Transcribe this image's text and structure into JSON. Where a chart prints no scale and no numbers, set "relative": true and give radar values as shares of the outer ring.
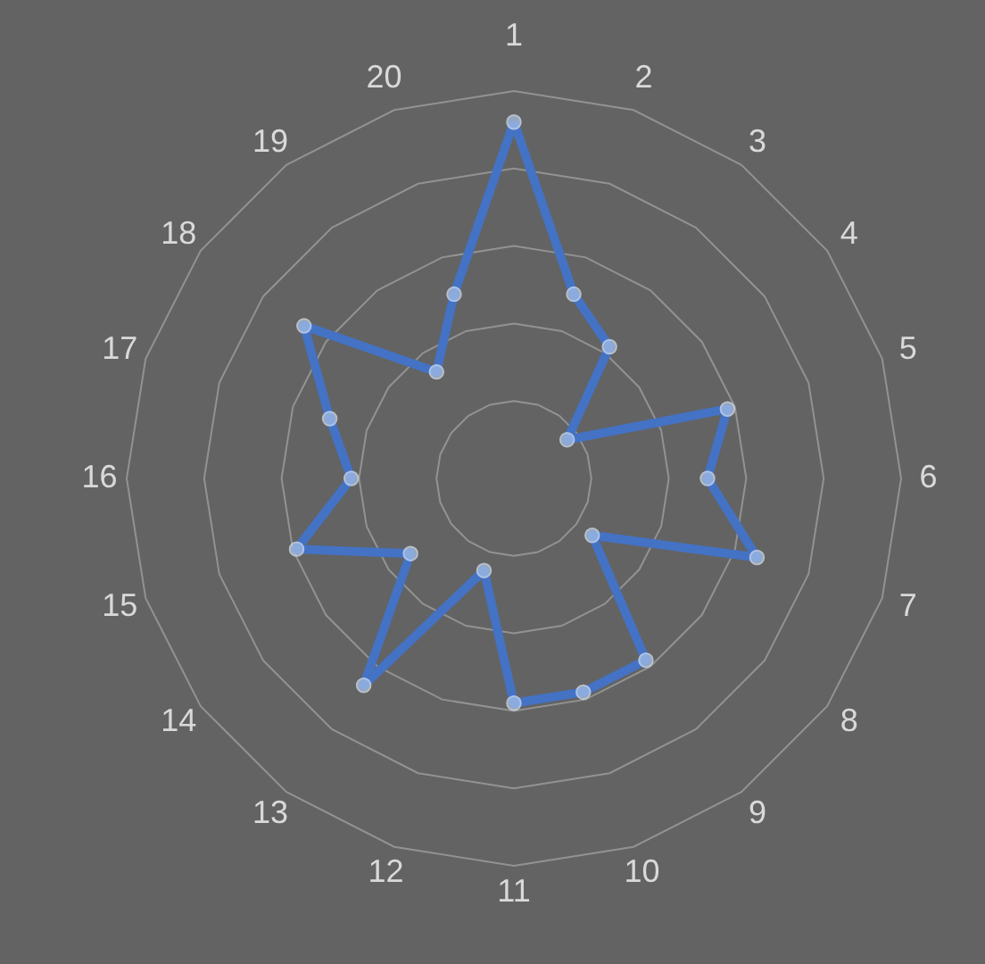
{
  "chart_data": {
    "type": "radar",
    "relative": true,
    "grid": true,
    "marker": "circle",
    "line_style": "solid",
    "categories": [
      "1",
      "2",
      "3",
      "4",
      "5",
      "6",
      "7",
      "8",
      "9",
      "10",
      "11",
      "12",
      "13",
      "14",
      "15",
      "16",
      "17",
      "18",
      "19",
      "20"
    ],
    "series": [
      {
        "color": "#4472c4",
        "values": [
          0.92,
          0.5,
          0.42,
          0.17,
          0.58,
          0.5,
          0.66,
          0.25,
          0.58,
          0.58,
          0.58,
          0.25,
          0.66,
          0.33,
          0.59,
          0.42,
          0.5,
          0.67,
          0.34,
          0.5
        ]
      }
    ]
  }
}
